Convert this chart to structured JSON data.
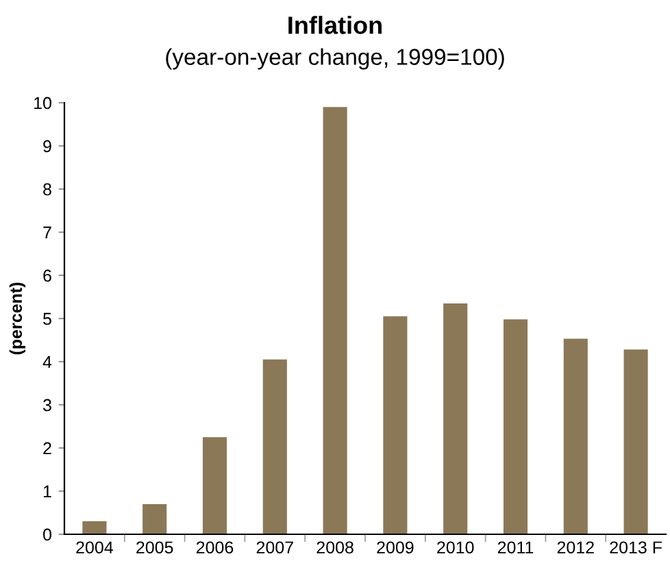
{
  "chart_data": {
    "type": "bar",
    "title": "Inflation",
    "subtitle": "(year-on-year change, 1999=100)",
    "ylabel": "(percent)",
    "categories": [
      "2004",
      "2005",
      "2006",
      "2007",
      "2008",
      "2009",
      "2010",
      "2011",
      "2012",
      "2013 F"
    ],
    "values": [
      0.3,
      0.7,
      2.25,
      4.05,
      9.9,
      5.05,
      5.35,
      4.98,
      4.53,
      4.28
    ],
    "color": "#8b7857",
    "ylim": [
      0,
      10
    ],
    "yticks": [
      0,
      1,
      2,
      3,
      4,
      5,
      6,
      7,
      8,
      9,
      10
    ],
    "grid": false,
    "legend": false
  }
}
